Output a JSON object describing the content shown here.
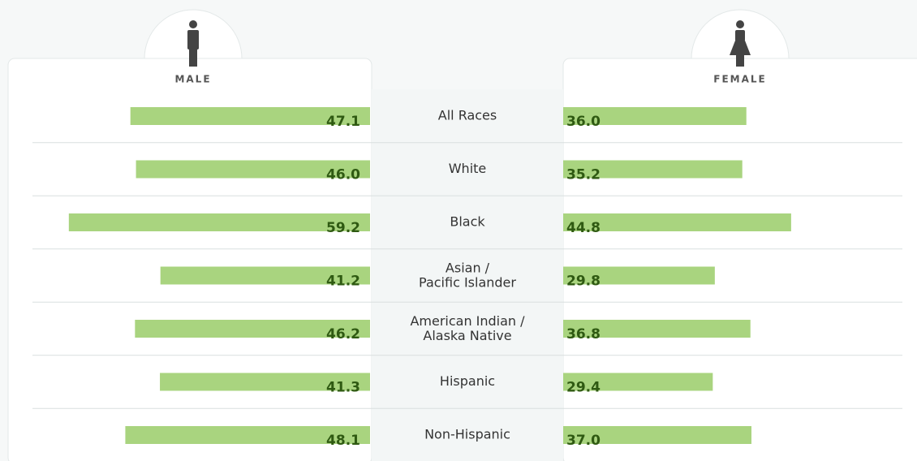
{
  "chart_data": {
    "type": "butterfly",
    "categories": [
      "All Races",
      "White",
      "Black",
      "Asian /\nPacific Islander",
      "American Indian /\nAlaska Native",
      "Hispanic",
      "Non-Hispanic"
    ],
    "series": [
      {
        "name": "MALE",
        "color": "#a9d47f",
        "values": [
          47.1,
          46.0,
          59.2,
          41.2,
          46.2,
          41.3,
          48.1
        ],
        "value_labels": [
          "47.1",
          "46.0",
          "59.2",
          "41.2",
          "46.2",
          "41.3",
          "48.1"
        ]
      },
      {
        "name": "FEMALE",
        "color": "#a9d47f",
        "values": [
          36.0,
          35.2,
          44.8,
          29.8,
          36.8,
          29.4,
          37.0
        ],
        "value_labels": [
          "36.0",
          "35.2",
          "44.8",
          "29.8",
          "36.8",
          "29.4",
          "37.0"
        ]
      }
    ]
  }
}
